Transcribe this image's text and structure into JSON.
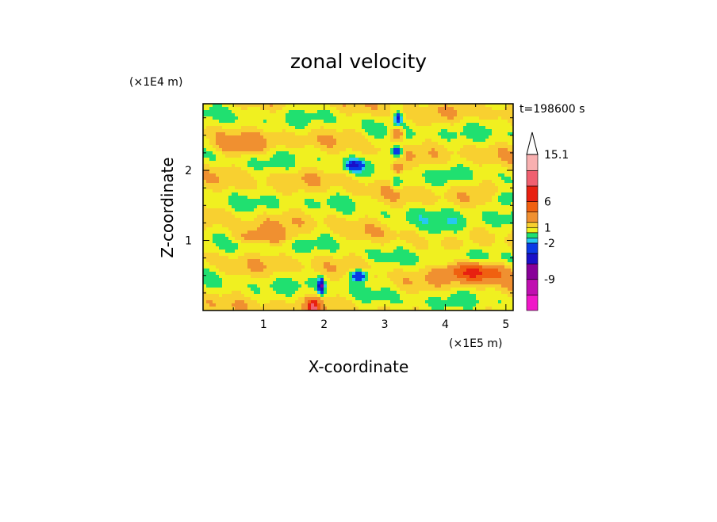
{
  "chart_data": {
    "type": "heatmap",
    "title": "zonal velocity",
    "xlabel": "X-coordinate",
    "ylabel": "Z-coordinate",
    "x_unit": "(×1E5 m)",
    "y_unit": "(×1E4 m)",
    "time_label": "t=198600 s",
    "xlim": [
      0,
      5.12
    ],
    "ylim": [
      0,
      2.95
    ],
    "x_ticks": [
      "1",
      "2",
      "3",
      "4",
      "5"
    ],
    "y_ticks": [
      "1",
      "2"
    ],
    "x_tick_values": [
      1,
      2,
      3,
      4,
      5
    ],
    "y_tick_values": [
      1,
      2
    ],
    "colorbar": {
      "levels": [
        {
          "lo": -15,
          "hi": -12,
          "color": "#f018c8"
        },
        {
          "lo": -12,
          "hi": -9,
          "color": "#c00fb0"
        },
        {
          "lo": -9,
          "hi": -6,
          "color": "#880098"
        },
        {
          "lo": -6,
          "hi": -4,
          "color": "#1a10c8"
        },
        {
          "lo": -4,
          "hi": -2,
          "color": "#0a3ae6"
        },
        {
          "lo": -2,
          "hi": -1,
          "color": "#26c8f0"
        },
        {
          "lo": -1,
          "hi": 0,
          "color": "#20e070"
        },
        {
          "lo": 0,
          "hi": 1,
          "color": "#f0f020"
        },
        {
          "lo": 1,
          "hi": 2,
          "color": "#f8d030"
        },
        {
          "lo": 2,
          "hi": 4,
          "color": "#f09030"
        },
        {
          "lo": 4,
          "hi": 6,
          "color": "#f06010"
        },
        {
          "lo": 6,
          "hi": 9,
          "color": "#e82010"
        },
        {
          "lo": 9,
          "hi": 12,
          "color": "#f06070"
        },
        {
          "lo": 12,
          "hi": 15.1,
          "color": "#f8b0b0"
        }
      ],
      "labeled_values": [
        "15.1",
        "6",
        "1",
        "-2",
        "-9"
      ],
      "labeled_positions": [
        15.1,
        6,
        1,
        -2,
        -9
      ],
      "max_label": "15.1"
    },
    "field_features": [
      {
        "x": 3.22,
        "z": 2.74,
        "value": -5,
        "sx": 0.06,
        "sz": 0.08
      },
      {
        "x": 3.2,
        "z": 2.52,
        "value": 4,
        "sx": 0.1,
        "sz": 0.08
      },
      {
        "x": 3.2,
        "z": 2.27,
        "value": -5,
        "sx": 0.1,
        "sz": 0.08
      },
      {
        "x": 3.2,
        "z": 2.02,
        "value": 3,
        "sx": 0.1,
        "sz": 0.07
      },
      {
        "x": 3.2,
        "z": 1.8,
        "value": -2,
        "sx": 0.08,
        "sz": 0.07
      },
      {
        "x": 2.5,
        "z": 2.07,
        "value": -5,
        "sx": 0.13,
        "sz": 0.07
      },
      {
        "x": 2.58,
        "z": 0.5,
        "value": -5,
        "sx": 0.15,
        "sz": 0.09
      },
      {
        "x": 4.5,
        "z": 0.55,
        "value": 6,
        "sx": 0.45,
        "sz": 0.13
      },
      {
        "x": 4.05,
        "z": 1.15,
        "value": -2,
        "sx": 0.35,
        "sz": 0.2
      },
      {
        "x": 4.95,
        "z": 1.6,
        "value": -2.5,
        "sx": 0.2,
        "sz": 0.1
      },
      {
        "x": 1.82,
        "z": 0.05,
        "value": 8,
        "sx": 0.1,
        "sz": 0.1
      },
      {
        "x": 1.95,
        "z": 0.35,
        "value": -8,
        "sx": 0.05,
        "sz": 0.1
      },
      {
        "x": 1.0,
        "z": 1.05,
        "value": 2.5,
        "sx": 0.5,
        "sz": 0.1
      },
      {
        "x": 0.6,
        "z": 2.35,
        "value": 1.5,
        "sx": 0.5,
        "sz": 0.15
      }
    ]
  }
}
